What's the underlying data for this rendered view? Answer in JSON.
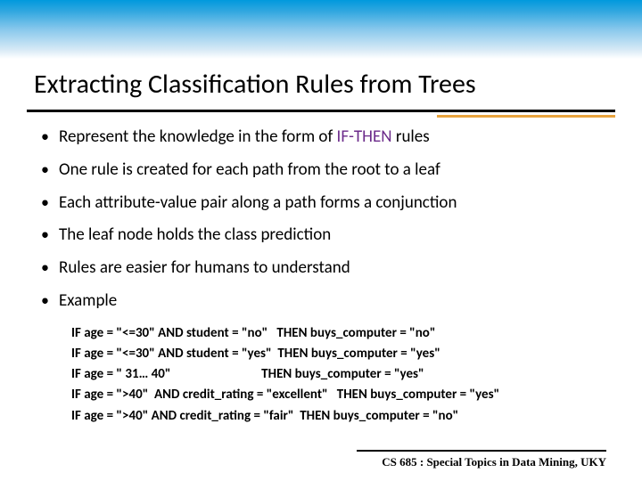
{
  "title": "Extracting Classification Rules from Trees",
  "bullets": [
    {
      "prefix": "Represent the knowledge in the form of ",
      "highlight": "IF-THEN",
      "suffix": " rules"
    },
    {
      "text": "One rule is created for each path from the root to a leaf"
    },
    {
      "text": "Each attribute-value pair along a path forms a conjunction"
    },
    {
      "text": "The leaf node holds the class prediction"
    },
    {
      "text": "Rules are easier for humans to understand"
    },
    {
      "text": "Example"
    }
  ],
  "examples": [
    "IF age = \"<=30\" AND student = \"no\"   THEN buys_computer = \"no\"",
    "IF age = \"<=30\" AND student = \"yes\"  THEN buys_computer = \"yes\"",
    "IF age = \" 31… 40\"                              THEN buys_computer = \"yes\"",
    "IF age = \">40\"  AND credit_rating = \"excellent\"   THEN buys_computer = \"yes\"",
    "IF age = \">40\" AND credit_rating = \"fair\"  THEN buys_computer = \"no\""
  ],
  "footer": "CS 685 : Special Topics in Data Mining, UKY",
  "colors": {
    "highlight": "#6b2a8a",
    "gradient_top": "#0099dd",
    "accent": "#e8a33d"
  }
}
